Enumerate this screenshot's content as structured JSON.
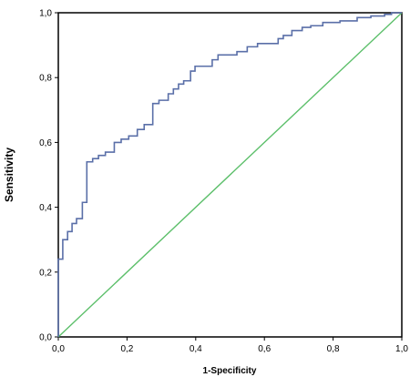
{
  "chart_data": {
    "type": "line",
    "title": "",
    "xlabel": "1-Specificity",
    "ylabel": "Sensitivity",
    "xlim": [
      0.0,
      1.0
    ],
    "ylim": [
      0.0,
      1.0
    ],
    "grid": false,
    "legend": "none",
    "x_ticks": [
      0.0,
      0.2,
      0.4,
      0.6,
      0.8,
      1.0
    ],
    "y_ticks": [
      0.0,
      0.2,
      0.4,
      0.6,
      0.8,
      1.0
    ],
    "x_tick_labels": [
      "0,0",
      "0,2",
      "0,4",
      "0,6",
      "0,8",
      "1,0"
    ],
    "y_tick_labels": [
      "0,0",
      "0,2",
      "0,4",
      "0,6",
      "0,8",
      "1,0"
    ],
    "colors": {
      "roc_curve": "#5a6fa8",
      "reference_line": "#5cbf6a",
      "axes": "#000000"
    },
    "series": [
      {
        "values": [
          [
            0.0,
            0.0
          ],
          [
            0.0,
            0.24
          ],
          [
            0.013,
            0.24
          ],
          [
            0.013,
            0.3
          ],
          [
            0.027,
            0.3
          ],
          [
            0.027,
            0.325
          ],
          [
            0.04,
            0.325
          ],
          [
            0.04,
            0.35
          ],
          [
            0.053,
            0.35
          ],
          [
            0.053,
            0.365
          ],
          [
            0.07,
            0.365
          ],
          [
            0.07,
            0.415
          ],
          [
            0.083,
            0.415
          ],
          [
            0.083,
            0.54
          ],
          [
            0.1,
            0.54
          ],
          [
            0.1,
            0.55
          ],
          [
            0.117,
            0.55
          ],
          [
            0.117,
            0.56
          ],
          [
            0.137,
            0.56
          ],
          [
            0.137,
            0.57
          ],
          [
            0.163,
            0.57
          ],
          [
            0.163,
            0.6
          ],
          [
            0.183,
            0.6
          ],
          [
            0.183,
            0.61
          ],
          [
            0.205,
            0.61
          ],
          [
            0.205,
            0.62
          ],
          [
            0.23,
            0.62
          ],
          [
            0.23,
            0.64
          ],
          [
            0.25,
            0.64
          ],
          [
            0.25,
            0.655
          ],
          [
            0.275,
            0.655
          ],
          [
            0.275,
            0.72
          ],
          [
            0.293,
            0.72
          ],
          [
            0.293,
            0.73
          ],
          [
            0.32,
            0.73
          ],
          [
            0.32,
            0.75
          ],
          [
            0.335,
            0.75
          ],
          [
            0.335,
            0.765
          ],
          [
            0.35,
            0.765
          ],
          [
            0.35,
            0.78
          ],
          [
            0.365,
            0.78
          ],
          [
            0.365,
            0.79
          ],
          [
            0.385,
            0.79
          ],
          [
            0.385,
            0.82
          ],
          [
            0.398,
            0.82
          ],
          [
            0.398,
            0.835
          ],
          [
            0.448,
            0.835
          ],
          [
            0.448,
            0.855
          ],
          [
            0.465,
            0.855
          ],
          [
            0.465,
            0.87
          ],
          [
            0.52,
            0.87
          ],
          [
            0.52,
            0.88
          ],
          [
            0.55,
            0.88
          ],
          [
            0.55,
            0.895
          ],
          [
            0.58,
            0.895
          ],
          [
            0.58,
            0.905
          ],
          [
            0.64,
            0.905
          ],
          [
            0.64,
            0.92
          ],
          [
            0.655,
            0.92
          ],
          [
            0.655,
            0.93
          ],
          [
            0.68,
            0.93
          ],
          [
            0.68,
            0.945
          ],
          [
            0.71,
            0.945
          ],
          [
            0.71,
            0.955
          ],
          [
            0.735,
            0.955
          ],
          [
            0.735,
            0.96
          ],
          [
            0.77,
            0.96
          ],
          [
            0.77,
            0.97
          ],
          [
            0.82,
            0.97
          ],
          [
            0.82,
            0.975
          ],
          [
            0.87,
            0.975
          ],
          [
            0.87,
            0.985
          ],
          [
            0.91,
            0.985
          ],
          [
            0.91,
            0.99
          ],
          [
            0.95,
            0.99
          ],
          [
            0.95,
            0.995
          ],
          [
            0.97,
            0.995
          ],
          [
            0.97,
            1.0
          ],
          [
            1.0,
            1.0
          ]
        ]
      },
      {
        "values": [
          [
            0.0,
            0.0
          ],
          [
            1.0,
            1.0
          ]
        ]
      }
    ]
  }
}
